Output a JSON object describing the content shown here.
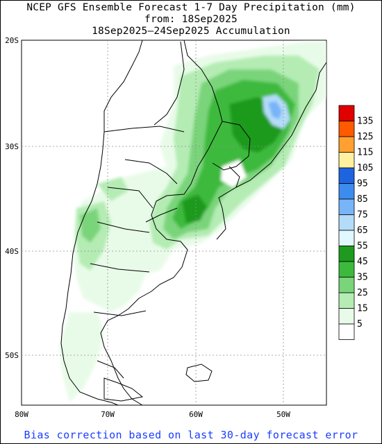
{
  "title": {
    "line1": "NCEP GFS Ensemble Forecast 1-7 Day Precipitation (mm)",
    "line2": "from: 18Sep2025",
    "line3": "18Sep2025–24Sep2025 Accumulation"
  },
  "footer": "Bias correction based on last 30-day forecast error",
  "axes": {
    "lat_labels": [
      "20S",
      "30S",
      "40S",
      "50S"
    ],
    "lon_labels": [
      "80W",
      "70W",
      "60W",
      "50W"
    ]
  },
  "legend": {
    "labels": [
      "135",
      "125",
      "115",
      "105",
      "95",
      "85",
      "75",
      "65",
      "55",
      "45",
      "35",
      "25",
      "15",
      "5"
    ],
    "colors": [
      "#e00000",
      "#ff5a00",
      "#ffa030",
      "#fff0a0",
      "#1e64e0",
      "#3c8cf0",
      "#78b4f8",
      "#b4dcf8",
      "#e0f8ff",
      "#1e9a1e",
      "#3cba3c",
      "#7ad47a",
      "#b4ecb4",
      "#e8fbe8",
      "#ffffff"
    ]
  },
  "colors": {
    "frame": "#000000",
    "footer_text": "#1a3cff",
    "coast": "#000000",
    "grid": "#909090"
  }
}
